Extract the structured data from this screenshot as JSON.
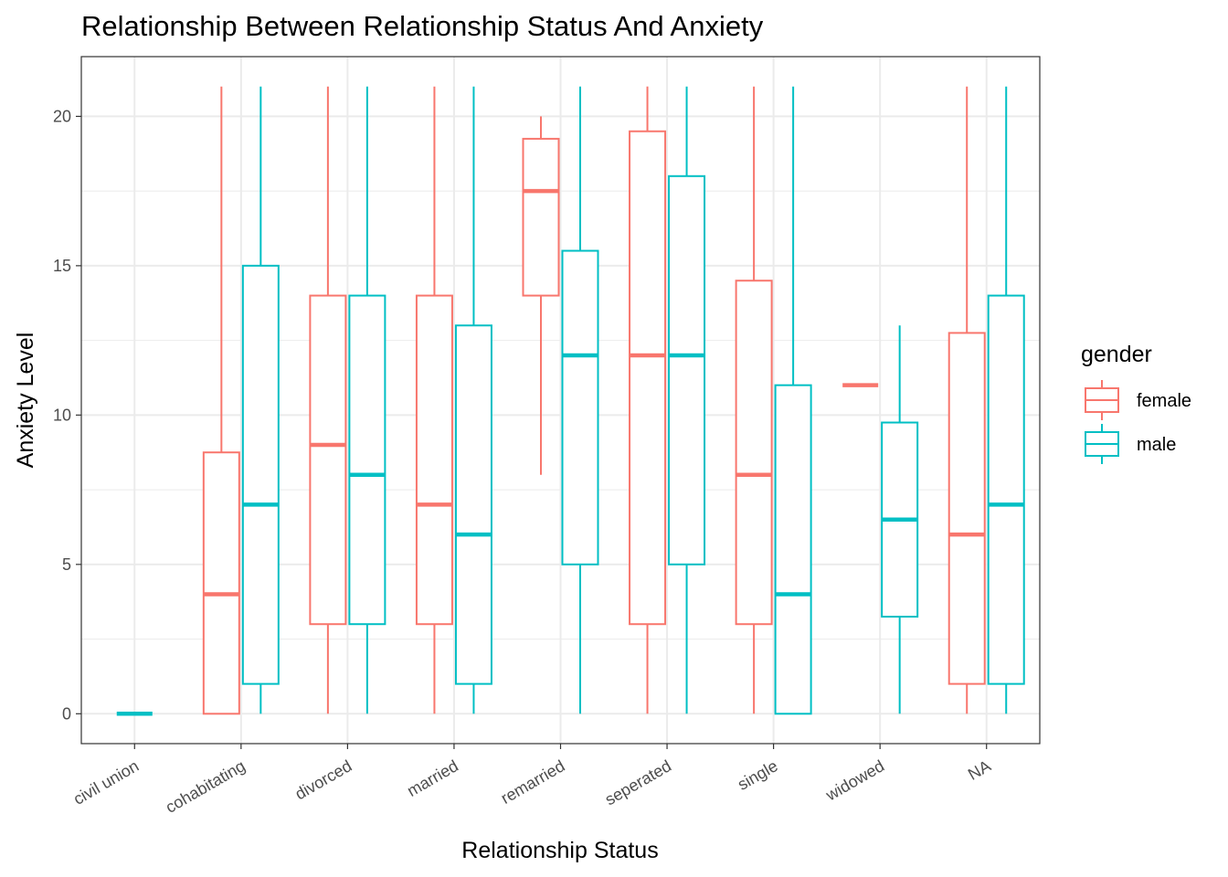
{
  "chart_data": {
    "type": "boxplot",
    "title": "Relationship Between Relationship Status And Anxiety",
    "xlabel": "Relationship Status",
    "ylabel": "Anxiety Level",
    "categories": [
      "civil union",
      "cohabitating",
      "divorced",
      "married",
      "remarried",
      "seperated",
      "single",
      "widowed",
      "NA"
    ],
    "y_ticks": [
      "0",
      "5",
      "10",
      "15",
      "20"
    ],
    "ylim": [
      -1,
      22
    ],
    "grid": true,
    "legend": {
      "title": "gender",
      "placement": "right",
      "entries": [
        "female",
        "male"
      ]
    },
    "colors": {
      "female": "#F8766D",
      "male": "#00BFC4",
      "grid": "#EBEBEB",
      "border": "#333333"
    },
    "series": [
      {
        "name": "female",
        "boxes": [
          null,
          {
            "min": 0,
            "q1": 0,
            "median": 4,
            "q3": 8.75,
            "max": 21
          },
          {
            "min": 0,
            "q1": 3,
            "median": 9,
            "q3": 14,
            "max": 21
          },
          {
            "min": 0,
            "q1": 3,
            "median": 7,
            "q3": 14,
            "max": 21
          },
          {
            "min": 8,
            "q1": 14,
            "median": 17.5,
            "q3": 19.25,
            "max": 20
          },
          {
            "min": 0,
            "q1": 3,
            "median": 12,
            "q3": 19.5,
            "max": 21
          },
          {
            "min": 0,
            "q1": 3,
            "median": 8,
            "q3": 14.5,
            "max": 21
          },
          {
            "min": 11,
            "q1": 11,
            "median": 11,
            "q3": 11,
            "max": 11
          },
          {
            "min": 0,
            "q1": 1,
            "median": 6,
            "q3": 12.75,
            "max": 21
          }
        ]
      },
      {
        "name": "male",
        "boxes": [
          {
            "min": 0,
            "q1": 0,
            "median": 0,
            "q3": 0,
            "max": 0
          },
          {
            "min": 0,
            "q1": 1,
            "median": 7,
            "q3": 15,
            "max": 21
          },
          {
            "min": 0,
            "q1": 3,
            "median": 8,
            "q3": 14,
            "max": 21
          },
          {
            "min": 0,
            "q1": 1,
            "median": 6,
            "q3": 13,
            "max": 21
          },
          {
            "min": 0,
            "q1": 5,
            "median": 12,
            "q3": 15.5,
            "max": 21
          },
          {
            "min": 0,
            "q1": 5,
            "median": 12,
            "q3": 18,
            "max": 21
          },
          {
            "min": 0,
            "q1": 0,
            "median": 4,
            "q3": 11,
            "max": 21
          },
          {
            "min": 0,
            "q1": 3.25,
            "median": 6.5,
            "q3": 9.75,
            "max": 13
          },
          {
            "min": 0,
            "q1": 1,
            "median": 7,
            "q3": 14,
            "max": 21
          }
        ]
      }
    ]
  }
}
